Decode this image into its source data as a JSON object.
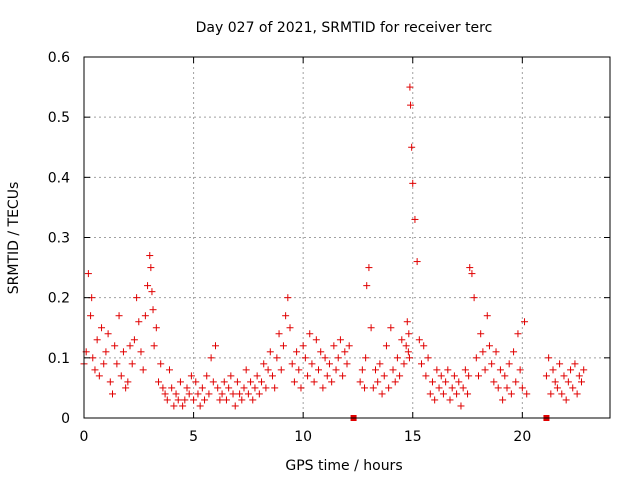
{
  "chart_data": {
    "type": "scatter",
    "title": "Day 027 of 2021, SRMTID for receiver terc",
    "xlabel": "GPS time / hours",
    "ylabel": "SRMTID / TECUs",
    "xlim": [
      0,
      24
    ],
    "ylim": [
      0,
      0.6
    ],
    "xticks": [
      0,
      5,
      10,
      15,
      20
    ],
    "xtick_labels": [
      "0",
      "5",
      "10",
      "15",
      "20"
    ],
    "yticks": [
      0,
      0.1,
      0.2,
      0.3,
      0.4,
      0.5,
      0.6
    ],
    "ytick_labels": [
      "0",
      "0.1",
      "0.2",
      "0.3",
      "0.4",
      "0.5",
      "0.6"
    ],
    "grid": true,
    "marker": "plus",
    "series_color": "#e00000",
    "data_gaps_hours": [
      [
        12.2,
        12.5
      ],
      [
        20.4,
        21.0
      ]
    ],
    "gap_markers_x": [
      12.3,
      21.1
    ],
    "series": [
      {
        "name": "SRMTID",
        "x": [
          0.0,
          0.1,
          0.2,
          0.3,
          0.35,
          0.4,
          0.5,
          0.6,
          0.7,
          0.8,
          0.9,
          1.0,
          1.1,
          1.2,
          1.3,
          1.4,
          1.5,
          1.6,
          1.7,
          1.8,
          1.9,
          2.0,
          2.1,
          2.2,
          2.3,
          2.4,
          2.5,
          2.6,
          2.7,
          2.8,
          2.9,
          3.0,
          3.05,
          3.1,
          3.15,
          3.2,
          3.3,
          3.4,
          3.5,
          3.6,
          3.7,
          3.8,
          3.9,
          4.0,
          4.1,
          4.2,
          4.3,
          4.4,
          4.5,
          4.6,
          4.7,
          4.8,
          4.9,
          5.0,
          5.1,
          5.2,
          5.3,
          5.4,
          5.5,
          5.6,
          5.7,
          5.8,
          5.9,
          6.0,
          6.1,
          6.2,
          6.3,
          6.4,
          6.5,
          6.6,
          6.7,
          6.8,
          6.9,
          7.0,
          7.1,
          7.2,
          7.3,
          7.4,
          7.5,
          7.6,
          7.7,
          7.8,
          7.9,
          8.0,
          8.1,
          8.2,
          8.3,
          8.4,
          8.5,
          8.6,
          8.7,
          8.8,
          8.9,
          9.0,
          9.1,
          9.2,
          9.3,
          9.4,
          9.5,
          9.6,
          9.7,
          9.8,
          9.9,
          10.0,
          10.1,
          10.2,
          10.3,
          10.4,
          10.5,
          10.6,
          10.7,
          10.8,
          10.9,
          11.0,
          11.1,
          11.2,
          11.3,
          11.4,
          11.5,
          11.6,
          11.7,
          11.8,
          11.9,
          12.0,
          12.1,
          12.6,
          12.7,
          12.8,
          12.85,
          12.9,
          13.0,
          13.1,
          13.2,
          13.3,
          13.4,
          13.5,
          13.6,
          13.7,
          13.8,
          13.9,
          14.0,
          14.1,
          14.2,
          14.3,
          14.4,
          14.5,
          14.6,
          14.7,
          14.75,
          14.8,
          14.82,
          14.85,
          14.87,
          14.9,
          14.95,
          15.0,
          15.1,
          15.2,
          15.3,
          15.4,
          15.5,
          15.6,
          15.7,
          15.8,
          15.9,
          16.0,
          16.1,
          16.2,
          16.3,
          16.4,
          16.5,
          16.6,
          16.7,
          16.8,
          16.9,
          17.0,
          17.1,
          17.2,
          17.3,
          17.4,
          17.5,
          17.55,
          17.6,
          17.7,
          17.8,
          17.9,
          18.0,
          18.1,
          18.2,
          18.3,
          18.4,
          18.5,
          18.6,
          18.7,
          18.8,
          18.9,
          19.0,
          19.1,
          19.2,
          19.3,
          19.4,
          19.5,
          19.6,
          19.7,
          19.8,
          19.9,
          20.0,
          20.1,
          20.2,
          21.1,
          21.2,
          21.3,
          21.4,
          21.5,
          21.6,
          21.7,
          21.8,
          21.9,
          22.0,
          22.1,
          22.2,
          22.3,
          22.4,
          22.5,
          22.6,
          22.7,
          22.8
        ],
        "y": [
          0.09,
          0.11,
          0.24,
          0.17,
          0.2,
          0.1,
          0.08,
          0.13,
          0.07,
          0.15,
          0.09,
          0.11,
          0.14,
          0.06,
          0.04,
          0.12,
          0.09,
          0.17,
          0.07,
          0.11,
          0.05,
          0.06,
          0.12,
          0.09,
          0.13,
          0.2,
          0.16,
          0.11,
          0.08,
          0.17,
          0.22,
          0.27,
          0.25,
          0.21,
          0.18,
          0.12,
          0.15,
          0.06,
          0.09,
          0.05,
          0.04,
          0.03,
          0.08,
          0.05,
          0.02,
          0.04,
          0.03,
          0.06,
          0.02,
          0.03,
          0.05,
          0.04,
          0.07,
          0.03,
          0.06,
          0.04,
          0.02,
          0.05,
          0.03,
          0.07,
          0.04,
          0.1,
          0.06,
          0.12,
          0.05,
          0.03,
          0.04,
          0.06,
          0.03,
          0.05,
          0.07,
          0.04,
          0.02,
          0.06,
          0.04,
          0.03,
          0.05,
          0.08,
          0.04,
          0.06,
          0.03,
          0.05,
          0.07,
          0.04,
          0.06,
          0.09,
          0.05,
          0.08,
          0.11,
          0.07,
          0.05,
          0.1,
          0.14,
          0.08,
          0.12,
          0.17,
          0.2,
          0.15,
          0.09,
          0.06,
          0.11,
          0.08,
          0.05,
          0.12,
          0.1,
          0.07,
          0.14,
          0.09,
          0.06,
          0.13,
          0.08,
          0.11,
          0.05,
          0.1,
          0.07,
          0.09,
          0.06,
          0.12,
          0.08,
          0.1,
          0.13,
          0.07,
          0.11,
          0.09,
          0.12,
          0.06,
          0.08,
          0.05,
          0.1,
          0.22,
          0.25,
          0.15,
          0.05,
          0.08,
          0.06,
          0.09,
          0.04,
          0.07,
          0.12,
          0.05,
          0.15,
          0.08,
          0.06,
          0.1,
          0.07,
          0.13,
          0.09,
          0.12,
          0.16,
          0.11,
          0.14,
          0.1,
          0.55,
          0.52,
          0.45,
          0.39,
          0.33,
          0.26,
          0.13,
          0.09,
          0.12,
          0.07,
          0.1,
          0.04,
          0.06,
          0.03,
          0.08,
          0.05,
          0.07,
          0.04,
          0.06,
          0.08,
          0.03,
          0.05,
          0.07,
          0.04,
          0.06,
          0.02,
          0.05,
          0.08,
          0.04,
          0.07,
          0.25,
          0.24,
          0.2,
          0.1,
          0.07,
          0.14,
          0.11,
          0.08,
          0.17,
          0.12,
          0.09,
          0.06,
          0.11,
          0.05,
          0.08,
          0.03,
          0.07,
          0.05,
          0.09,
          0.04,
          0.11,
          0.06,
          0.14,
          0.08,
          0.05,
          0.16,
          0.04,
          0.07,
          0.1,
          0.04,
          0.08,
          0.06,
          0.05,
          0.09,
          0.04,
          0.07,
          0.03,
          0.06,
          0.08,
          0.05,
          0.09,
          0.04,
          0.07,
          0.06,
          0.08
        ]
      }
    ]
  }
}
